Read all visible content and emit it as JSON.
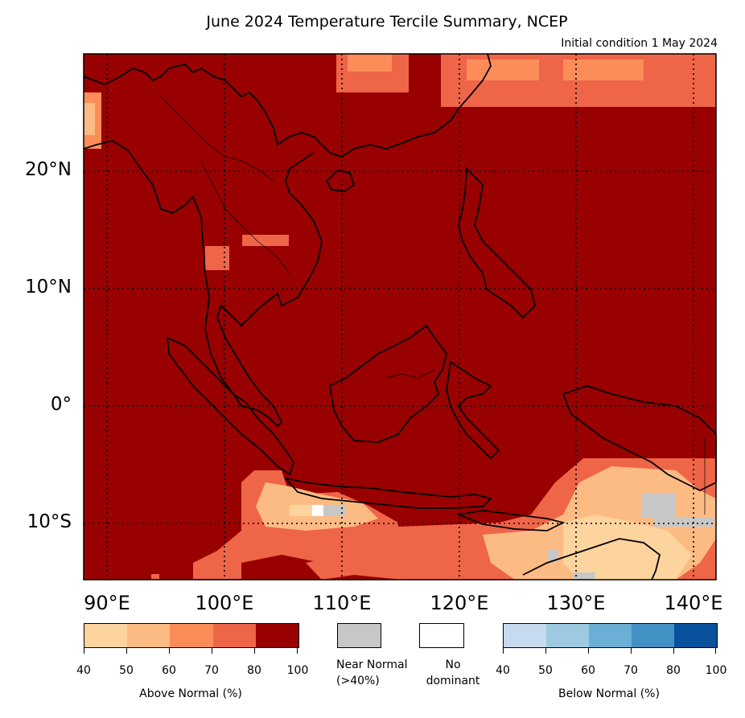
{
  "title": "June 2024 Temperature Tercile Summary, NCEP",
  "subtitle": "Initial condition 1 May 2024",
  "lat_labels": [
    "20°N",
    "10°N",
    "0°",
    "10°S"
  ],
  "lon_labels": [
    "90°E",
    "100°E",
    "110°E",
    "120°E",
    "130°E",
    "140°E"
  ],
  "colors": {
    "above": [
      "#fdd49e",
      "#fdbb84",
      "#fc8d59",
      "#ef6548",
      "#990000"
    ],
    "near_normal": "#c7c7c7",
    "no_dominant": "#ffffff",
    "below": [
      "#c6dbef",
      "#9ecae1",
      "#6baed6",
      "#4292c6",
      "#08519c"
    ],
    "coastline": "#000000"
  },
  "legend": {
    "above_label": "Above Normal (%)",
    "below_label": "Below Normal (%)",
    "near_normal_label": "Near Normal (>40%)",
    "no_dominant_label": "No dominant",
    "ticks": [
      "40",
      "50",
      "60",
      "70",
      "80",
      "100"
    ]
  }
}
